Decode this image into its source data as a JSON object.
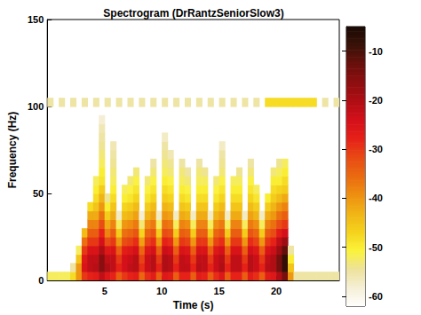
{
  "chart_data": {
    "type": "spectrogram",
    "title": "Spectrogram (DrRantzSeniorSlow3)",
    "x_label": "Time (s)",
    "y_label": "Frequency (Hz)",
    "xlim": [
      0,
      25.5
    ],
    "xticks": [
      5,
      10,
      15,
      20
    ],
    "ylim": [
      0,
      150
    ],
    "yticks": [
      0,
      50,
      100,
      150
    ],
    "grid": false,
    "x": [
      0.25,
      0.75,
      1.25,
      1.75,
      2.25,
      2.75,
      3.25,
      3.75,
      4.25,
      4.75,
      5.25,
      5.75,
      6.25,
      6.75,
      7.25,
      7.75,
      8.25,
      8.75,
      9.25,
      9.75,
      10.25,
      10.75,
      11.25,
      11.75,
      12.25,
      12.75,
      13.25,
      13.75,
      14.25,
      14.75,
      15.25,
      15.75,
      16.25,
      16.75,
      17.25,
      17.75,
      18.25,
      18.75,
      19.25,
      19.75,
      20.25,
      20.75,
      21.25,
      21.75,
      22.25,
      22.75,
      23.25,
      23.75,
      24.25,
      24.75,
      25.25
    ],
    "y": [
      2.5,
      7.5,
      12.5,
      17.5,
      22.5,
      27.5,
      32.5,
      37.5,
      42.5,
      47.5,
      52.5,
      57.5,
      62.5,
      67.5,
      72.5,
      77.5,
      82.5,
      87.5,
      92.5,
      97.5,
      102.5
    ],
    "power": [
      [
        -52,
        null,
        null,
        null,
        null,
        null,
        null,
        null,
        null,
        null,
        null,
        null,
        null,
        null,
        null,
        null,
        null,
        null,
        null,
        null,
        -55
      ],
      [
        -52,
        null,
        null,
        null,
        null,
        null,
        null,
        null,
        null,
        null,
        null,
        null,
        null,
        null,
        null,
        null,
        null,
        null,
        null,
        null,
        null
      ],
      [
        -52,
        null,
        null,
        null,
        null,
        null,
        null,
        null,
        null,
        null,
        null,
        null,
        null,
        null,
        null,
        null,
        null,
        null,
        null,
        null,
        -55
      ],
      [
        -52,
        null,
        null,
        null,
        null,
        null,
        null,
        null,
        null,
        null,
        null,
        null,
        null,
        null,
        null,
        null,
        null,
        null,
        null,
        null,
        null
      ],
      [
        -48,
        -55,
        null,
        null,
        null,
        null,
        null,
        null,
        null,
        null,
        null,
        null,
        null,
        null,
        null,
        null,
        null,
        null,
        null,
        null,
        -55
      ],
      [
        -40,
        -40,
        -45,
        -52,
        null,
        null,
        null,
        null,
        null,
        null,
        null,
        null,
        null,
        null,
        null,
        null,
        null,
        null,
        null,
        null,
        null
      ],
      [
        -30,
        -25,
        -26,
        -30,
        -36,
        -44,
        null,
        null,
        null,
        null,
        null,
        null,
        null,
        null,
        null,
        null,
        null,
        null,
        null,
        null,
        -55
      ],
      [
        -28,
        -22,
        -22,
        -25,
        -30,
        -34,
        -38,
        -42,
        -48,
        null,
        null,
        null,
        null,
        null,
        null,
        null,
        null,
        null,
        null,
        null,
        null
      ],
      [
        -27,
        -21,
        -22,
        -25,
        -30,
        -34,
        -38,
        -42,
        -45,
        -48,
        -50,
        -52,
        null,
        null,
        null,
        null,
        null,
        null,
        null,
        null,
        -55
      ],
      [
        -22,
        -16,
        -16,
        -20,
        -24,
        -28,
        -32,
        -36,
        -40,
        -43,
        -46,
        -49,
        -50,
        -52,
        -53,
        -54,
        -55,
        -56,
        -58,
        null,
        null
      ],
      [
        -26,
        -20,
        -22,
        -26,
        -32,
        -38,
        -42,
        -46,
        -50,
        -54,
        null,
        null,
        null,
        null,
        null,
        null,
        null,
        null,
        null,
        null,
        -55
      ],
      [
        -28,
        -22,
        -22,
        -25,
        -30,
        -34,
        -38,
        -42,
        -45,
        -48,
        -50,
        -52,
        -53,
        -54,
        -55,
        -56,
        null,
        null,
        null,
        null,
        null
      ],
      [
        -34,
        -28,
        -30,
        -34,
        -40,
        -46,
        -52,
        -57,
        null,
        null,
        null,
        null,
        null,
        null,
        null,
        null,
        null,
        null,
        null,
        null,
        -55
      ],
      [
        -30,
        -24,
        -24,
        -27,
        -32,
        -36,
        -40,
        -44,
        -47,
        -50,
        -52,
        null,
        null,
        null,
        null,
        null,
        null,
        null,
        null,
        null,
        null
      ],
      [
        -28,
        -22,
        -23,
        -26,
        -31,
        -35,
        -39,
        -43,
        -46,
        -49,
        -51,
        -53,
        null,
        null,
        null,
        null,
        null,
        null,
        null,
        null,
        -55
      ],
      [
        -27,
        -21,
        -21,
        -24,
        -29,
        -33,
        -37,
        -41,
        -44,
        -47,
        -49,
        -51,
        -53,
        null,
        null,
        null,
        null,
        null,
        null,
        null,
        null
      ],
      [
        -35,
        -29,
        -31,
        -35,
        -41,
        -47,
        -53,
        -58,
        null,
        null,
        null,
        null,
        null,
        null,
        null,
        null,
        null,
        null,
        null,
        null,
        -55
      ],
      [
        -29,
        -23,
        -23,
        -26,
        -31,
        -35,
        -39,
        -43,
        -46,
        -49,
        -51,
        -53,
        null,
        null,
        null,
        null,
        null,
        null,
        null,
        null,
        null
      ],
      [
        -27,
        -21,
        -21,
        -24,
        -29,
        -33,
        -37,
        -41,
        -44,
        -47,
        -49,
        -51,
        -53,
        -55,
        null,
        null,
        null,
        null,
        null,
        null,
        -55
      ],
      [
        -34,
        -28,
        -30,
        -34,
        -40,
        -46,
        -52,
        -57,
        null,
        null,
        null,
        null,
        null,
        null,
        null,
        null,
        null,
        null,
        null,
        null,
        null
      ],
      [
        -26,
        -20,
        -20,
        -23,
        -28,
        -32,
        -36,
        -40,
        -43,
        -46,
        -48,
        -50,
        -52,
        -53,
        -54,
        -55,
        -57,
        null,
        null,
        null,
        -55
      ],
      [
        -27,
        -21,
        -21,
        -24,
        -29,
        -33,
        -37,
        -41,
        -44,
        -47,
        -49,
        -51,
        -53,
        -54,
        -56,
        null,
        null,
        null,
        null,
        null,
        null
      ],
      [
        -34,
        -28,
        -30,
        -34,
        -40,
        -46,
        -52,
        -57,
        null,
        null,
        null,
        null,
        null,
        null,
        null,
        null,
        null,
        null,
        null,
        null,
        -55
      ],
      [
        -28,
        -22,
        -22,
        -25,
        -30,
        -34,
        -38,
        -42,
        -45,
        -48,
        -50,
        -52,
        -53,
        -55,
        null,
        null,
        null,
        null,
        null,
        null,
        null
      ],
      [
        -28,
        -22,
        -23,
        -26,
        -31,
        -35,
        -39,
        -43,
        -46,
        -49,
        -51,
        -53,
        -55,
        null,
        null,
        null,
        null,
        null,
        null,
        null,
        -55
      ],
      [
        -34,
        -28,
        -30,
        -34,
        -40,
        -46,
        -52,
        -57,
        null,
        null,
        null,
        null,
        null,
        null,
        null,
        null,
        null,
        null,
        null,
        null,
        null
      ],
      [
        -27,
        -21,
        -22,
        -25,
        -30,
        -34,
        -38,
        -42,
        -45,
        -48,
        -50,
        -52,
        -53,
        -55,
        null,
        null,
        null,
        null,
        null,
        null,
        -55
      ],
      [
        -28,
        -22,
        -22,
        -25,
        -30,
        -34,
        -38,
        -42,
        -45,
        -48,
        -50,
        -52,
        -54,
        null,
        null,
        null,
        null,
        null,
        null,
        null,
        null
      ],
      [
        -34,
        -28,
        -30,
        -34,
        -40,
        -46,
        -52,
        -57,
        null,
        null,
        null,
        null,
        null,
        null,
        null,
        null,
        null,
        null,
        null,
        null,
        -55
      ],
      [
        -29,
        -23,
        -23,
        -26,
        -31,
        -35,
        -39,
        -43,
        -46,
        -49,
        -51,
        -53,
        null,
        null,
        null,
        null,
        null,
        null,
        null,
        null,
        null
      ],
      [
        -26,
        -20,
        -21,
        -24,
        -29,
        -33,
        -37,
        -41,
        -44,
        -47,
        -49,
        -51,
        -53,
        -54,
        -55,
        -57,
        null,
        null,
        null,
        null,
        -55
      ],
      [
        -34,
        -28,
        -30,
        -34,
        -40,
        -46,
        -52,
        -57,
        null,
        null,
        null,
        null,
        null,
        null,
        null,
        null,
        null,
        null,
        null,
        null,
        null
      ],
      [
        -28,
        -22,
        -22,
        -25,
        -30,
        -34,
        -38,
        -42,
        -45,
        -48,
        -50,
        -52,
        null,
        null,
        null,
        null,
        null,
        null,
        null,
        null,
        -55
      ],
      [
        -28,
        -22,
        -22,
        -25,
        -30,
        -34,
        -38,
        -42,
        -45,
        -48,
        -50,
        -52,
        -54,
        null,
        null,
        null,
        null,
        null,
        null,
        null,
        null
      ],
      [
        -34,
        -28,
        -30,
        -34,
        -40,
        -46,
        -52,
        -57,
        null,
        null,
        null,
        null,
        null,
        null,
        null,
        null,
        null,
        null,
        null,
        null,
        -55
      ],
      [
        -27,
        -21,
        -21,
        -24,
        -29,
        -33,
        -37,
        -41,
        -44,
        -47,
        -49,
        -51,
        -53,
        -55,
        null,
        null,
        null,
        null,
        null,
        null,
        null
      ],
      [
        -29,
        -23,
        -23,
        -26,
        -31,
        -35,
        -39,
        -43,
        -46,
        -49,
        -52,
        null,
        null,
        null,
        null,
        null,
        null,
        null,
        null,
        null,
        -55
      ],
      [
        -34,
        -28,
        -30,
        -34,
        -40,
        -46,
        -52,
        -57,
        null,
        null,
        null,
        null,
        null,
        null,
        null,
        null,
        null,
        null,
        null,
        null,
        null
      ],
      [
        -27,
        -21,
        -22,
        -25,
        -30,
        -34,
        -38,
        -42,
        -46,
        -50,
        null,
        null,
        null,
        null,
        null,
        null,
        null,
        null,
        null,
        null,
        -48
      ],
      [
        -26,
        -20,
        -20,
        -23,
        -28,
        -32,
        -36,
        -40,
        -43,
        -46,
        -48,
        -50,
        -53,
        null,
        null,
        null,
        null,
        null,
        null,
        null,
        -48
      ],
      [
        -20,
        -14,
        -14,
        -18,
        -22,
        -27,
        -32,
        -36,
        -40,
        -44,
        -47,
        -50,
        -52,
        -54,
        null,
        null,
        null,
        null,
        null,
        null,
        -48
      ],
      [
        -14,
        -8,
        -8,
        -12,
        -18,
        -24,
        -30,
        -34,
        -38,
        -42,
        -46,
        -48,
        -50,
        -52,
        null,
        null,
        null,
        null,
        null,
        null,
        -48
      ],
      [
        -40,
        -45,
        -50,
        -55,
        null,
        null,
        null,
        null,
        null,
        null,
        null,
        null,
        null,
        null,
        null,
        null,
        null,
        null,
        null,
        null,
        -48
      ],
      [
        -55,
        null,
        null,
        null,
        null,
        null,
        null,
        null,
        null,
        null,
        null,
        null,
        null,
        null,
        null,
        null,
        null,
        null,
        null,
        null,
        -48
      ],
      [
        -55,
        null,
        null,
        null,
        null,
        null,
        null,
        null,
        null,
        null,
        null,
        null,
        null,
        null,
        null,
        null,
        null,
        null,
        null,
        null,
        -48
      ],
      [
        -55,
        null,
        null,
        null,
        null,
        null,
        null,
        null,
        null,
        null,
        null,
        null,
        null,
        null,
        null,
        null,
        null,
        null,
        null,
        null,
        -48
      ],
      [
        -55,
        null,
        null,
        null,
        null,
        null,
        null,
        null,
        null,
        null,
        null,
        null,
        null,
        null,
        null,
        null,
        null,
        null,
        null,
        null,
        -48
      ],
      [
        -55,
        null,
        null,
        null,
        null,
        null,
        null,
        null,
        null,
        null,
        null,
        null,
        null,
        null,
        null,
        null,
        null,
        null,
        null,
        null,
        null
      ],
      [
        -55,
        null,
        null,
        null,
        null,
        null,
        null,
        null,
        null,
        null,
        null,
        null,
        null,
        null,
        null,
        null,
        null,
        null,
        null,
        null,
        -55
      ],
      [
        -55,
        null,
        null,
        null,
        null,
        null,
        null,
        null,
        null,
        null,
        null,
        null,
        null,
        null,
        null,
        null,
        null,
        null,
        null,
        null,
        null
      ],
      [
        -55,
        null,
        null,
        null,
        null,
        null,
        null,
        null,
        null,
        null,
        null,
        null,
        null,
        null,
        null,
        null,
        null,
        null,
        null,
        null,
        -55
      ]
    ],
    "colorbar": {
      "lim": [
        -62,
        -5
      ],
      "ticks": [
        -60,
        -50,
        -40,
        -30,
        -20,
        -10
      ]
    }
  }
}
